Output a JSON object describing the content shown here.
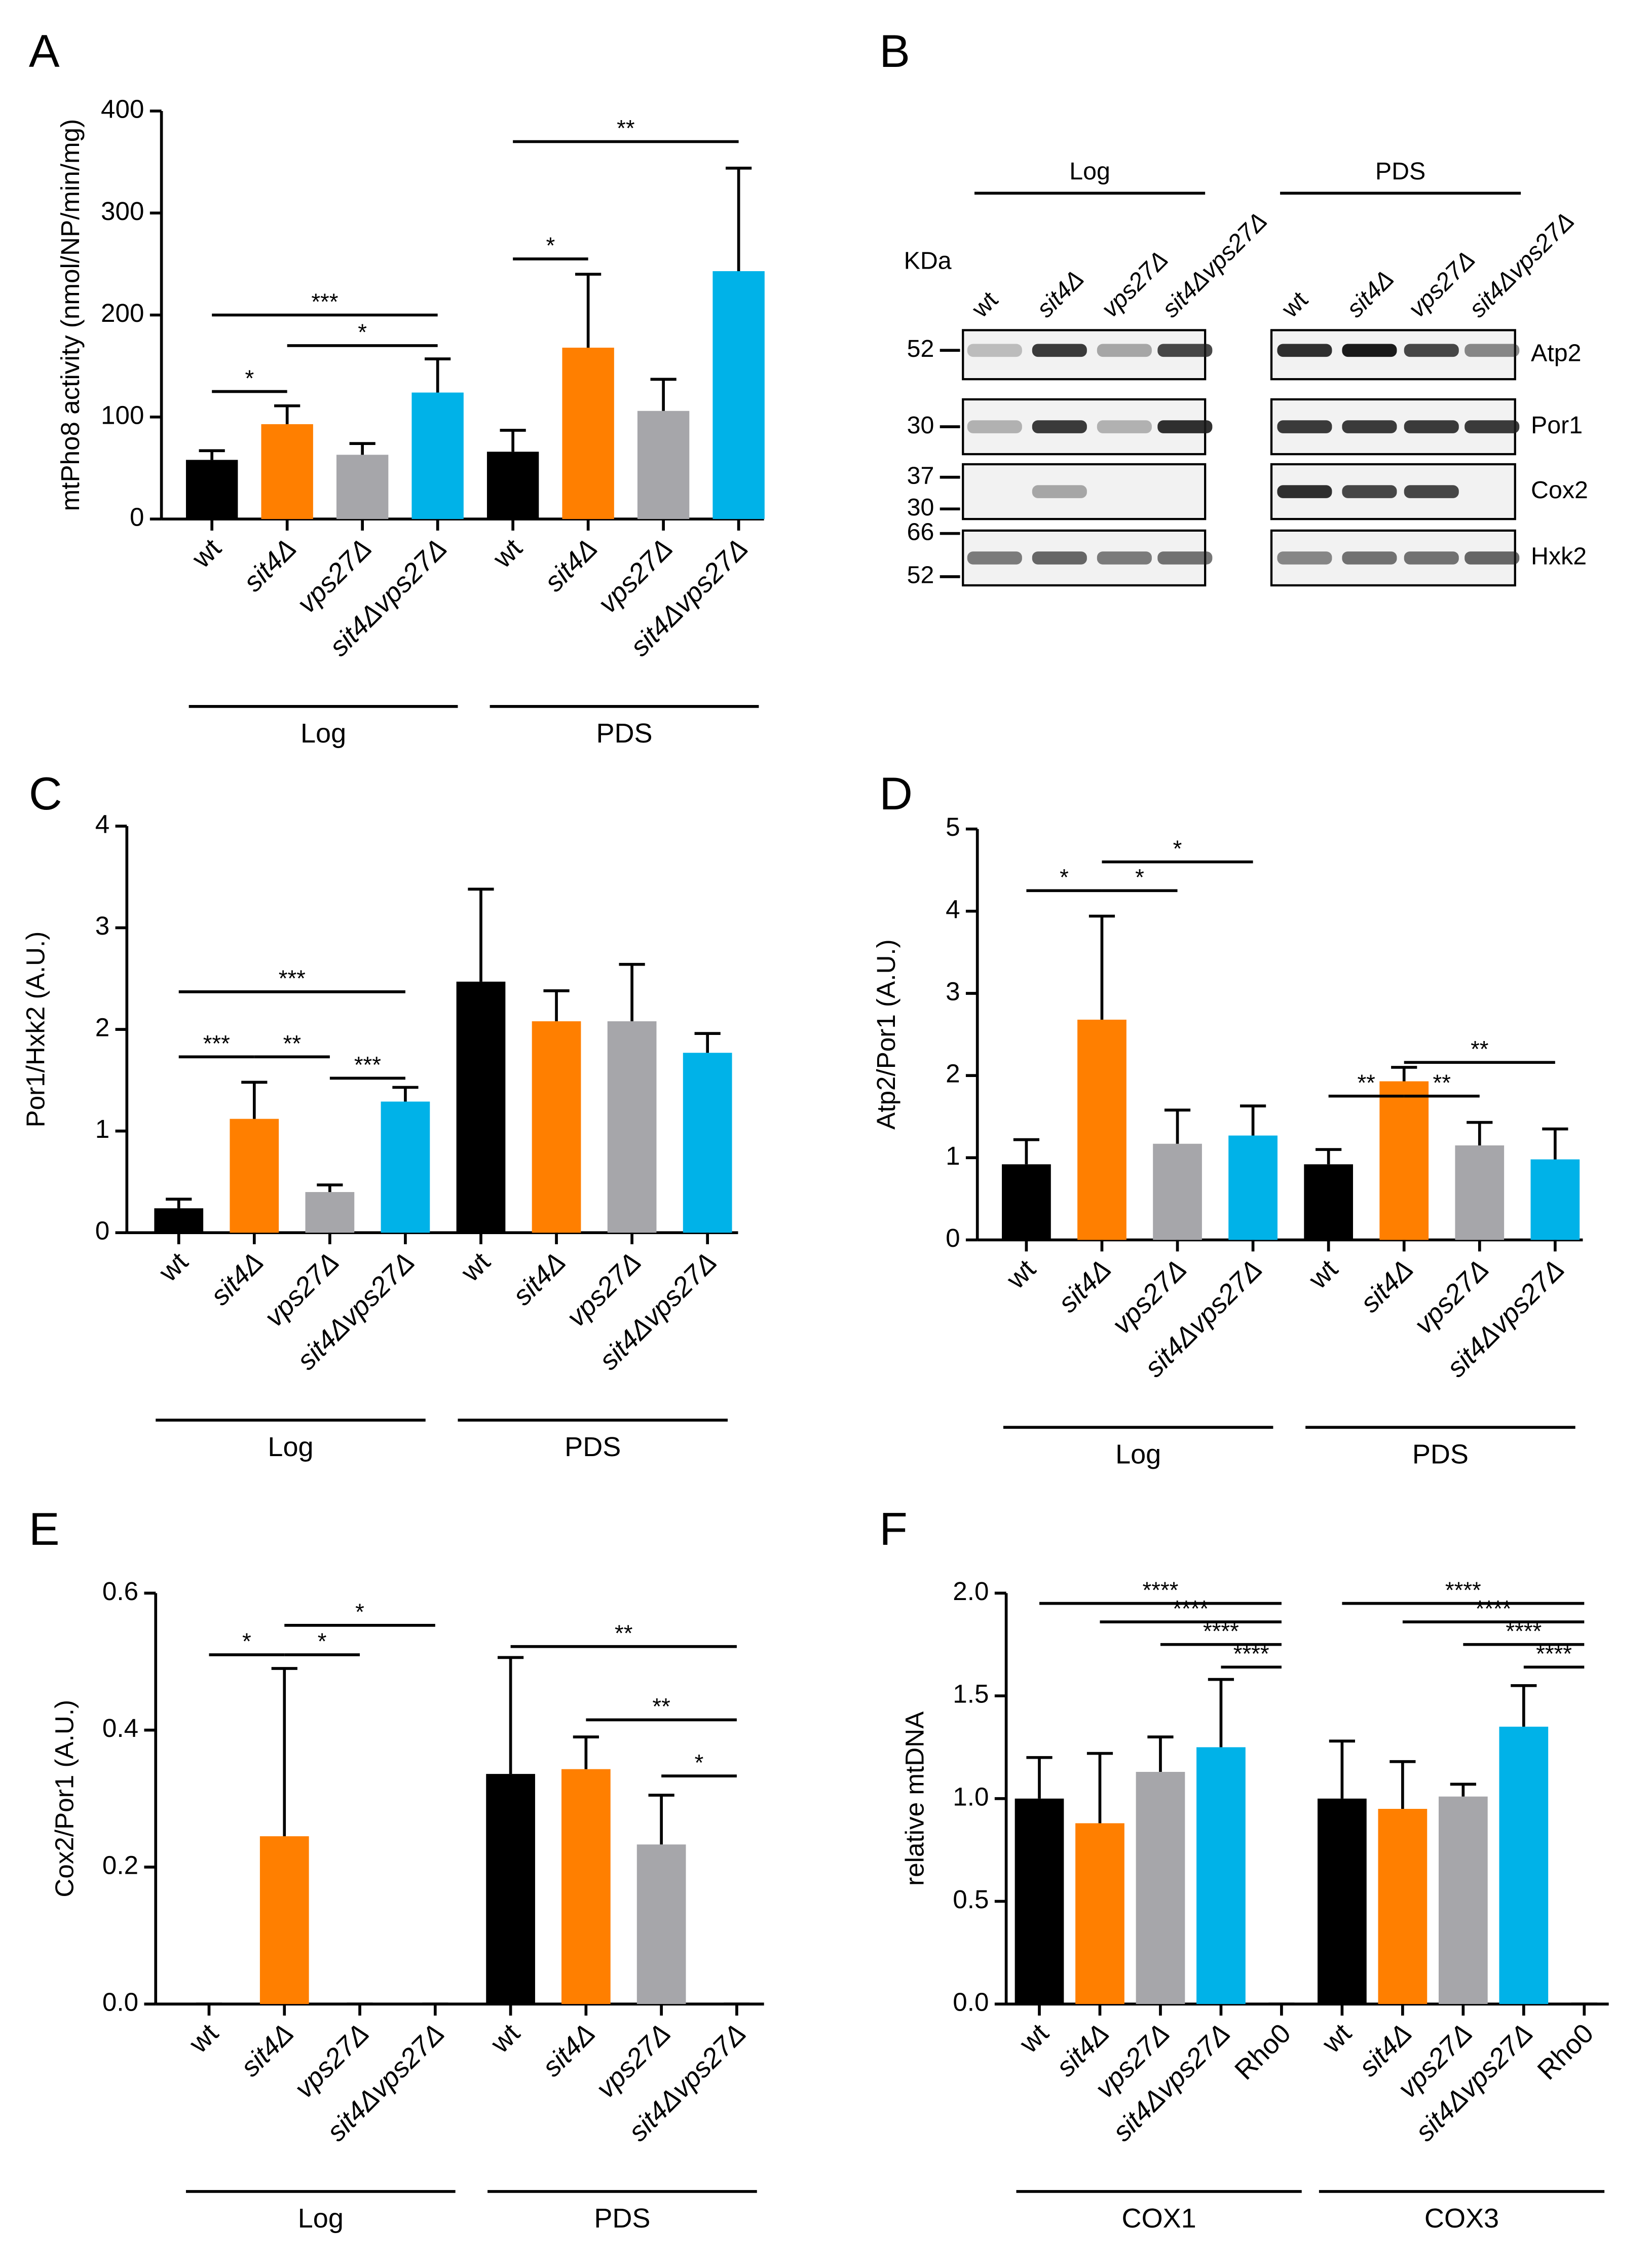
{
  "chart_data": [
    {
      "type": "bar",
      "panel": "A",
      "ylabel": "mtPho8 activity (nmol/NP/min/mg)",
      "ylim": [
        0,
        400
      ],
      "yticks": [
        0,
        100,
        200,
        300,
        400
      ],
      "colors": [
        "#000000",
        "#ff7f00",
        "#a6a6aa",
        "#00b2e8"
      ],
      "groups": [
        {
          "label": "Log",
          "categories": [
            "wt",
            "sit4Δ",
            "vps27Δ",
            "sit4Δvps27Δ"
          ],
          "values": [
            58,
            93,
            63,
            124
          ],
          "errors": [
            9,
            18,
            11,
            33
          ]
        },
        {
          "label": "PDS",
          "categories": [
            "wt",
            "sit4Δ",
            "vps27Δ",
            "sit4Δvps27Δ"
          ],
          "values": [
            66,
            168,
            106,
            243
          ],
          "errors": [
            21,
            72,
            31,
            101
          ]
        }
      ],
      "annotations": [
        "*",
        "***",
        "*",
        "*",
        "**"
      ]
    },
    {
      "type": "bar",
      "panel": "C",
      "ylabel": "Por1/Hxk2 (A.U.)",
      "ylim": [
        0,
        4
      ],
      "yticks": [
        0,
        1,
        2,
        3,
        4
      ],
      "colors": [
        "#000000",
        "#ff7f00",
        "#a6a6aa",
        "#00b2e8"
      ],
      "groups": [
        {
          "label": "Log",
          "categories": [
            "wt",
            "sit4Δ",
            "vps27Δ",
            "sit4Δvps27Δ"
          ],
          "values": [
            0.24,
            1.12,
            0.4,
            1.29
          ],
          "errors": [
            0.09,
            0.36,
            0.07,
            0.14
          ]
        },
        {
          "label": "PDS",
          "categories": [
            "wt",
            "sit4Δ",
            "vps27Δ",
            "sit4Δvps27Δ"
          ],
          "values": [
            2.47,
            2.08,
            2.08,
            1.77
          ],
          "errors": [
            0.91,
            0.3,
            0.56,
            0.19
          ]
        }
      ],
      "annotations": [
        "***",
        "***",
        "**",
        "***"
      ]
    },
    {
      "type": "bar",
      "panel": "D",
      "ylabel": "Atp2/Por1 (A.U.)",
      "ylim": [
        0,
        5
      ],
      "yticks": [
        0,
        1,
        2,
        3,
        4,
        5
      ],
      "colors": [
        "#000000",
        "#ff7f00",
        "#a6a6aa",
        "#00b2e8"
      ],
      "groups": [
        {
          "label": "Log",
          "categories": [
            "wt",
            "sit4Δ",
            "vps27Δ",
            "sit4Δvps27Δ"
          ],
          "values": [
            0.92,
            2.68,
            1.17,
            1.27
          ],
          "errors": [
            0.3,
            1.26,
            0.41,
            0.36
          ]
        },
        {
          "label": "PDS",
          "categories": [
            "wt",
            "sit4Δ",
            "vps27Δ",
            "sit4Δvps27Δ"
          ],
          "values": [
            0.92,
            1.93,
            1.15,
            0.98
          ],
          "errors": [
            0.18,
            0.17,
            0.28,
            0.37
          ]
        }
      ],
      "annotations": [
        "*",
        "*",
        "*",
        "**",
        "**",
        "**"
      ]
    },
    {
      "type": "bar",
      "panel": "E",
      "ylabel": "Cox2/Por1 (A.U.)",
      "ylim": [
        0,
        0.6
      ],
      "yticks": [
        {
          "value": 0,
          "label": "0.0"
        },
        0.2,
        0.4,
        0.6
      ],
      "colors": [
        "#000000",
        "#ff7f00",
        "#a6a6aa",
        "#00b2e8"
      ],
      "groups": [
        {
          "label": "Log",
          "categories": [
            "wt",
            "sit4Δ",
            "vps27Δ",
            "sit4Δvps27Δ"
          ],
          "values": [
            0,
            0.245,
            0,
            0
          ],
          "errors": [
            0,
            0.245,
            0,
            0
          ]
        },
        {
          "label": "PDS",
          "categories": [
            "wt",
            "sit4Δ",
            "vps27Δ",
            "sit4Δvps27Δ"
          ],
          "values": [
            0.336,
            0.343,
            0.233,
            0
          ],
          "errors": [
            0.17,
            0.047,
            0.072,
            0
          ]
        }
      ],
      "annotations": [
        "*",
        "*",
        "*",
        "**",
        "**",
        "*"
      ]
    },
    {
      "type": "bar",
      "panel": "F",
      "ylabel": "relative mtDNA",
      "ylim": [
        0,
        2
      ],
      "yticks": [
        {
          "value": 0,
          "label": "0.0"
        },
        0.5,
        {
          "value": 1,
          "label": "1.0"
        },
        1.5,
        {
          "value": 2,
          "label": "2.0"
        }
      ],
      "colors": [
        "#000000",
        "#ff7f00",
        "#a6a6aa",
        "#00b2e8"
      ],
      "groups": [
        {
          "label": "COX1",
          "categories": [
            "wt",
            "sit4Δ",
            "vps27Δ",
            "sit4Δvps27Δ",
            "Rho0"
          ],
          "values": [
            1.0,
            0.88,
            1.13,
            1.25,
            0
          ],
          "errors": [
            0.2,
            0.34,
            0.17,
            0.33,
            0
          ]
        },
        {
          "label": "COX3",
          "categories": [
            "wt",
            "sit4Δ",
            "vps27Δ",
            "sit4Δvps27Δ",
            "Rho0"
          ],
          "values": [
            1.0,
            0.95,
            1.01,
            1.35,
            0
          ],
          "errors": [
            0.28,
            0.23,
            0.06,
            0.2,
            0
          ]
        }
      ],
      "annotations": [
        "****",
        "****",
        "****",
        "****",
        "****",
        "****",
        "****",
        "****"
      ]
    }
  ],
  "blot": {
    "panel": "B",
    "kda_label": "KDa",
    "groups": [
      {
        "label": "Log",
        "lanes": [
          "wt",
          "sit4Δ",
          "vps27Δ",
          "sit4Δvps27Δ"
        ]
      },
      {
        "label": "PDS",
        "lanes": [
          "wt",
          "sit4Δ",
          "vps27Δ",
          "sit4Δvps27Δ"
        ]
      }
    ],
    "rows": [
      {
        "label": "Atp2",
        "markers": [
          "52"
        ]
      },
      {
        "label": "Por1",
        "markers": [
          "30"
        ]
      },
      {
        "label": "Cox2",
        "markers": [
          "37",
          "30"
        ]
      },
      {
        "label": "Hxk2",
        "markers": [
          "66",
          "52"
        ]
      }
    ]
  }
}
